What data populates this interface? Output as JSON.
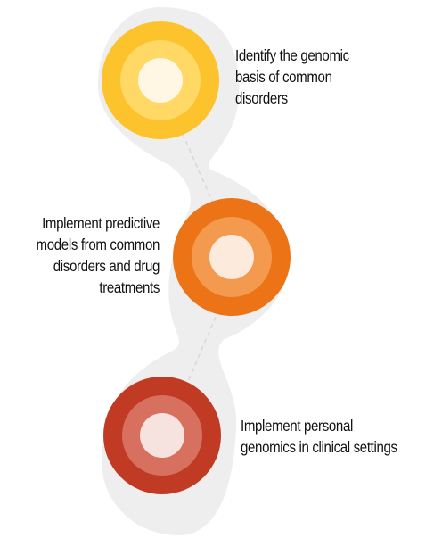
{
  "steps": [
    {
      "lines": [
        "Identify the genomic",
        "basis of common",
        "disorders"
      ],
      "outer_color": "#FDC32C",
      "mid_color": "#FFD866",
      "inner_color": "#FFF7E4"
    },
    {
      "lines": [
        "Implement predictive",
        "models from common",
        "disorders and drug",
        "treatments"
      ],
      "outer_color": "#EC7416",
      "mid_color": "#F39A4F",
      "inner_color": "#FCEADC"
    },
    {
      "lines": [
        "Implement personal",
        "genomics in clinical settings"
      ],
      "outer_color": "#C13A24",
      "mid_color": "#D7705F",
      "inner_color": "#F6E3E0"
    }
  ],
  "ribbon_color": "#EEEEEE",
  "connector_color": "#D8D8D8"
}
